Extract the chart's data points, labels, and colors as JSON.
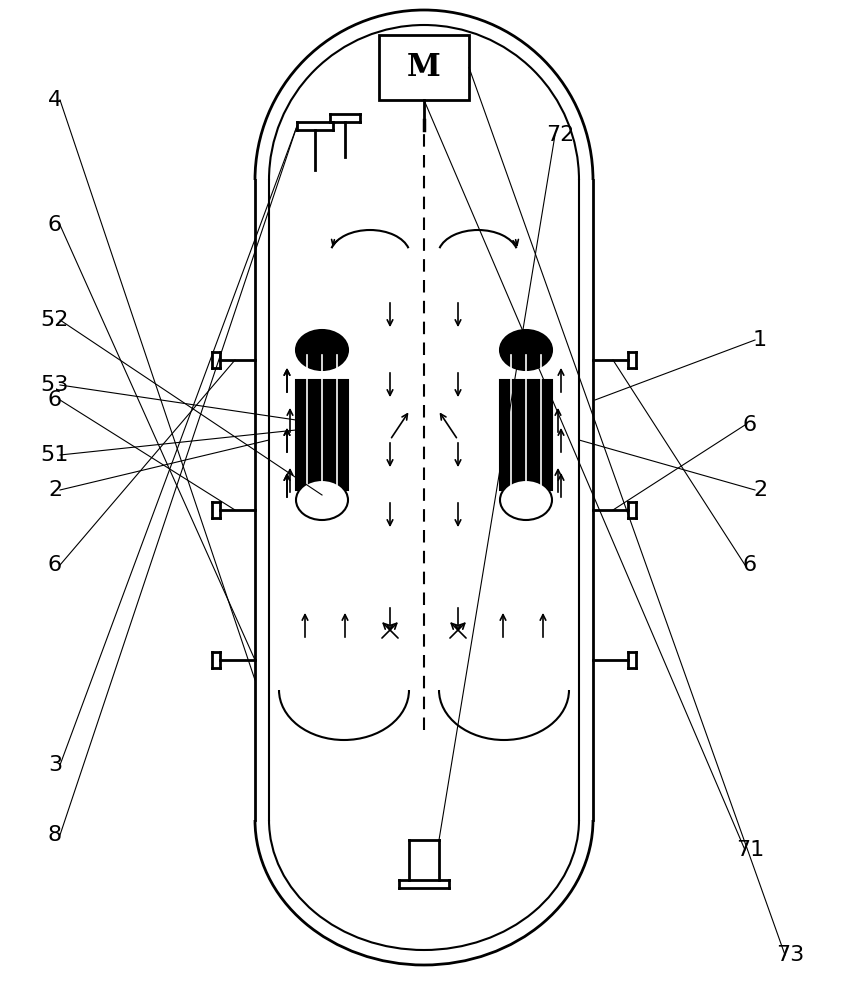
{
  "bg_color": "#ffffff",
  "line_color": "#000000",
  "vessel_lw": 2.0,
  "inner_lw": 1.5,
  "label_fontsize": 16,
  "labels": {
    "1": [
      0.88,
      0.34,
      "1"
    ],
    "2_left": [
      0.04,
      0.5,
      "2"
    ],
    "2_right": [
      0.88,
      0.52,
      "2"
    ],
    "3": [
      0.04,
      0.24,
      "3"
    ],
    "4": [
      0.04,
      0.9,
      "4"
    ],
    "6_top_left": [
      0.04,
      0.43,
      "6"
    ],
    "6_top_right": [
      0.82,
      0.43,
      "6"
    ],
    "6_mid_left": [
      0.04,
      0.6,
      "6"
    ],
    "6_mid_right": [
      0.82,
      0.58,
      "6"
    ],
    "6_bot_left": [
      0.04,
      0.78,
      "6"
    ],
    "8": [
      0.02,
      0.17,
      "8"
    ],
    "51": [
      0.04,
      0.55,
      "51"
    ],
    "52": [
      0.04,
      0.68,
      "52"
    ],
    "53": [
      0.04,
      0.62,
      "53"
    ],
    "71": [
      0.82,
      0.15,
      "71"
    ],
    "72": [
      0.6,
      0.87,
      "72"
    ],
    "73": [
      0.83,
      0.03,
      "73"
    ]
  }
}
